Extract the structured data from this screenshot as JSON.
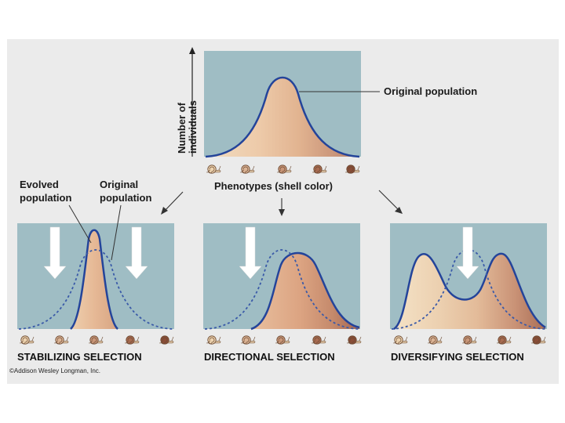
{
  "top_panel": {
    "y_axis_label_line1": "Number of",
    "y_axis_label_line2": "individuals",
    "x_axis_label": "Phenotypes (shell color)",
    "curve_label": "Original population"
  },
  "labels": {
    "evolved_line1": "Evolved",
    "evolved_line2": "population",
    "original_line1": "Original",
    "original_line2": "population"
  },
  "panels": [
    {
      "caption": "STABILIZING SELECTION"
    },
    {
      "caption": "DIRECTIONAL SELECTION"
    },
    {
      "caption": "DIVERSIFYING SELECTION"
    }
  ],
  "copyright": "©Addison Wesley Longman, Inc.",
  "colors": {
    "panel_bg": "#9fbdc4",
    "curve": "#24449a",
    "arrow": "#ffffff",
    "shell_colors": [
      "#ecd2ae",
      "#dbb394",
      "#c99678",
      "#a86b50",
      "#8a4d37"
    ]
  }
}
